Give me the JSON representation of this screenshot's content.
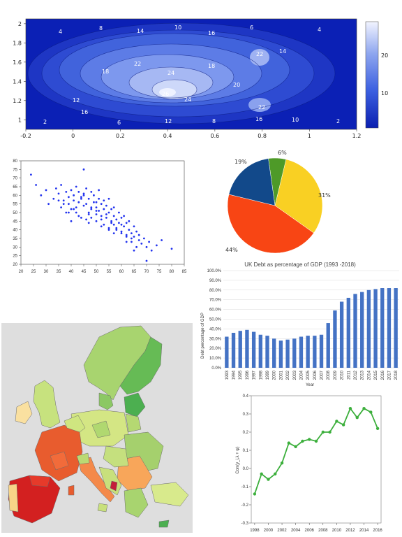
{
  "colors": {
    "contour_dark": "#0a1fb5",
    "contour_light": "#e6ecff",
    "scatter_point": "#2233ee",
    "bar": "#4472c4",
    "line": "#3caf3c",
    "map_sea": "#dedede"
  },
  "chart_data": [
    {
      "type": "heatmap",
      "subtype": "contour",
      "xlim": [
        -0.2,
        1.2
      ],
      "ylim": [
        0.9,
        2.05
      ],
      "x_ticks": [
        "-0.2",
        "0",
        "0.2",
        "0.4",
        "0.6",
        "0.8",
        "1",
        "1.2"
      ],
      "y_ticks": [
        "1",
        "1.2",
        "1.4",
        "1.6",
        "1.8",
        "2"
      ],
      "colorbar_ticks": [
        "20",
        "10"
      ],
      "contour_labels": [
        "2",
        "4",
        "6",
        "8",
        "10",
        "12",
        "14",
        "16",
        "18",
        "20",
        "22",
        "24",
        "26"
      ]
    },
    {
      "type": "scatter",
      "xlim": [
        20,
        85
      ],
      "ylim": [
        20,
        80
      ],
      "x_ticks": [
        "20",
        "25",
        "30",
        "35",
        "40",
        "45",
        "50",
        "55",
        "60",
        "65",
        "70",
        "75",
        "80",
        "85"
      ],
      "y_ticks": [
        "80",
        "75",
        "70",
        "65",
        "60",
        "55",
        "50",
        "45",
        "40",
        "35",
        "30",
        "25",
        "20"
      ],
      "x": [
        24,
        26,
        28,
        30,
        31,
        33,
        34,
        35,
        36,
        36,
        37,
        38,
        38,
        39,
        39,
        40,
        40,
        41,
        41,
        42,
        42,
        43,
        43,
        44,
        44,
        45,
        45,
        45,
        46,
        46,
        47,
        47,
        47,
        48,
        48,
        48,
        49,
        49,
        50,
        50,
        50,
        51,
        51,
        51,
        52,
        52,
        53,
        53,
        53,
        54,
        54,
        55,
        55,
        55,
        56,
        56,
        57,
        57,
        57,
        58,
        58,
        59,
        59,
        60,
        60,
        61,
        61,
        62,
        62,
        63,
        63,
        64,
        64,
        65,
        65,
        66,
        67,
        67,
        68,
        69,
        70,
        71,
        72,
        74,
        76,
        80,
        37,
        39,
        41,
        43,
        44,
        46,
        48,
        50,
        52,
        54,
        56,
        58,
        60,
        62,
        64,
        66,
        35,
        40,
        45,
        50,
        55,
        60,
        65,
        70,
        42,
        47,
        52,
        57,
        62
      ],
      "y": [
        72,
        66,
        60,
        63,
        55,
        58,
        64,
        61,
        66,
        53,
        57,
        62,
        50,
        59,
        55,
        63,
        52,
        60,
        57,
        65,
        50,
        62,
        56,
        58,
        47,
        75,
        54,
        60,
        55,
        64,
        50,
        58,
        44,
        62,
        52,
        47,
        56,
        60,
        53,
        49,
        45,
        58,
        51,
        63,
        55,
        48,
        52,
        57,
        43,
        54,
        47,
        50,
        41,
        58,
        45,
        52,
        48,
        43,
        53,
        46,
        40,
        50,
        44,
        47,
        39,
        48,
        42,
        44,
        36,
        45,
        40,
        38,
        33,
        42,
        36,
        39,
        34,
        37,
        32,
        35,
        30,
        33,
        28,
        31,
        34,
        29,
        55,
        50,
        52,
        48,
        59,
        46,
        53,
        51,
        42,
        49,
        44,
        41,
        38,
        37,
        35,
        30,
        57,
        45,
        61,
        56,
        40,
        43,
        28,
        22,
        53,
        49,
        46,
        38,
        33
      ]
    },
    {
      "type": "pie",
      "labels": [
        "6%",
        "31%",
        "44%",
        "19%"
      ],
      "values": [
        6,
        31,
        44,
        19
      ],
      "colors": [
        "#4e9a28",
        "#f9d023",
        "#f84514",
        "#12498a"
      ]
    },
    {
      "type": "bar",
      "title": "UK Debt as percentage of GDP (1993 -2018)",
      "xlabel": "Year",
      "ylabel": "Debt percentage of GDP",
      "ylim": [
        0,
        100
      ],
      "y_ticks": [
        "100.0%",
        "90.0%",
        "80.0%",
        "70.0%",
        "60.0%",
        "50.0%",
        "40.0%",
        "30.0%",
        "20.0%",
        "10.0%",
        "0.0%"
      ],
      "categories": [
        "1993",
        "1994",
        "1995",
        "1996",
        "1997",
        "1998",
        "1999",
        "2000",
        "2001",
        "2002",
        "2003",
        "2004",
        "2005",
        "2006",
        "2007",
        "2008",
        "2009",
        "2010",
        "2011",
        "2012",
        "2013",
        "2014",
        "2015",
        "2016",
        "2017",
        "2018"
      ],
      "values": [
        32,
        36,
        38,
        39,
        37,
        34,
        33,
        30,
        28,
        29,
        30,
        32,
        33,
        33,
        34,
        46,
        59,
        68,
        72,
        76,
        78,
        80,
        81,
        82,
        82,
        82
      ]
    },
    {
      "type": "line",
      "ylabel": "Corr(y_i,λ + ψ)",
      "ylim": [
        -0.3,
        0.4
      ],
      "y_ticks": [
        "0.4",
        "0.3",
        "0.2",
        "0.1",
        "0.0",
        "-0.1",
        "-0.2",
        "-0.3"
      ],
      "x_ticks": [
        "1998",
        "2000",
        "2002",
        "2004",
        "2006",
        "2008",
        "2010",
        "2012",
        "2014",
        "2016"
      ],
      "x": [
        1998,
        1999,
        2000,
        2001,
        2002,
        2003,
        2004,
        2005,
        2006,
        2007,
        2008,
        2009,
        2010,
        2011,
        2012,
        2013,
        2014,
        2015,
        2016
      ],
      "values": [
        -0.14,
        -0.03,
        -0.06,
        -0.03,
        0.03,
        0.14,
        0.12,
        0.15,
        0.16,
        0.15,
        0.2,
        0.2,
        0.26,
        0.24,
        0.33,
        0.28,
        0.33,
        0.31,
        0.22
      ]
    },
    {
      "type": "map",
      "region": "Europe regional choropleth"
    }
  ]
}
